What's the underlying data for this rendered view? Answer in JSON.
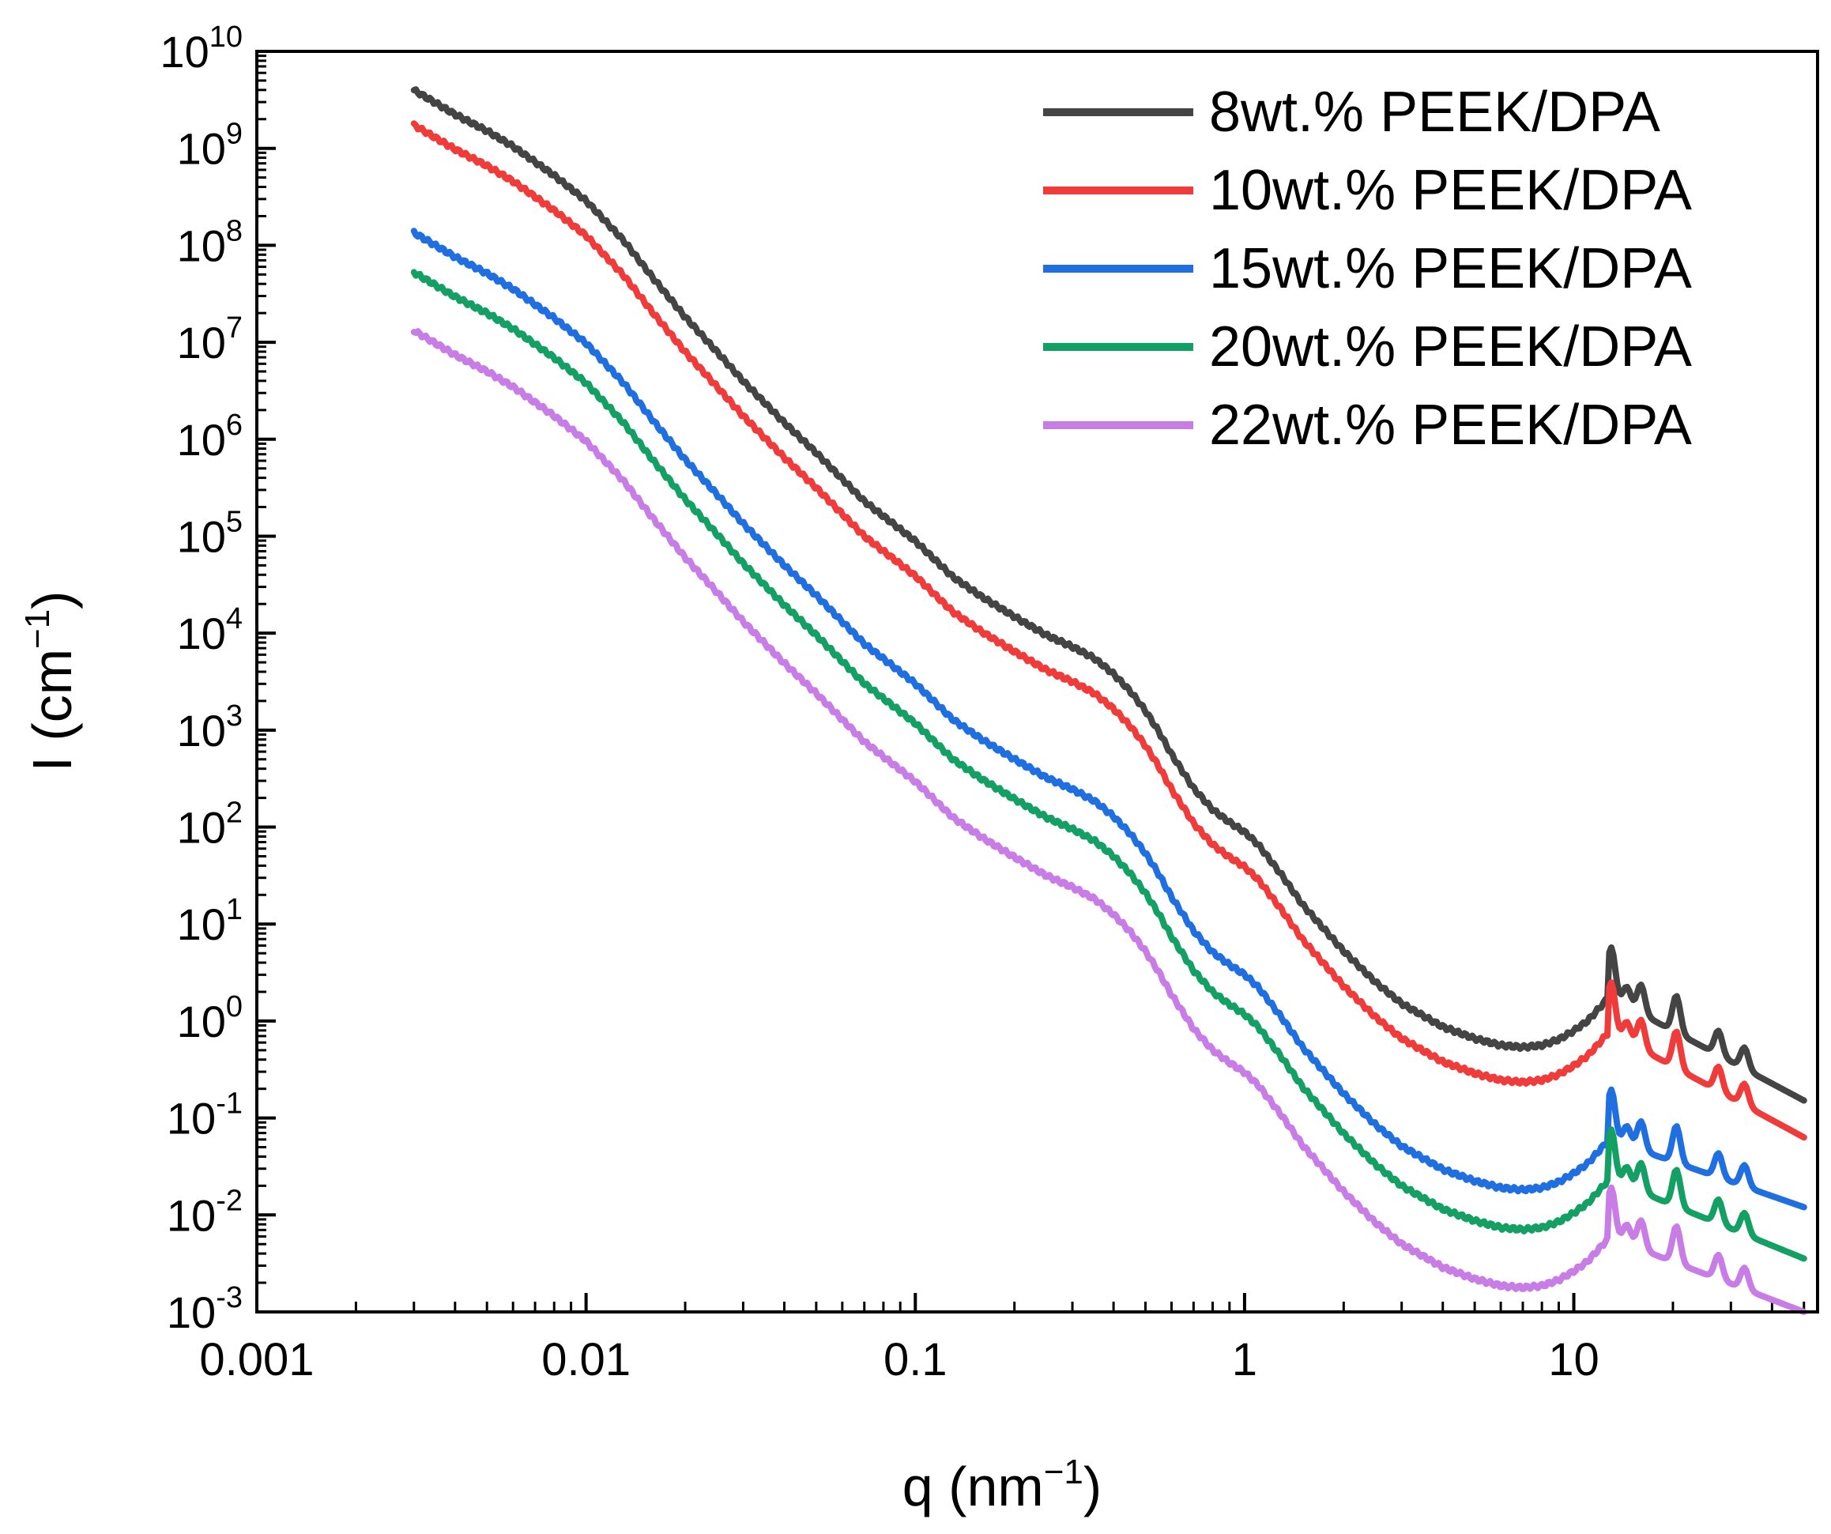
{
  "chart_data": {
    "type": "line",
    "title": "",
    "xlabel": "q (nm",
    "xlabel_sup": "−1",
    "xlabel_close": ")",
    "ylabel": "I (cm",
    "ylabel_sup": "−1",
    "ylabel_close": ")",
    "xscale": "log",
    "yscale": "log",
    "xlim": [
      0.001,
      55
    ],
    "ylim": [
      0.001,
      10000000000
    ],
    "x_ticks": [
      {
        "value": 0.001,
        "label": "0.001"
      },
      {
        "value": 0.01,
        "label": "0.01"
      },
      {
        "value": 0.1,
        "label": "0.1"
      },
      {
        "value": 1,
        "label": "1"
      },
      {
        "value": 10,
        "label": "10"
      }
    ],
    "y_ticks": [
      {
        "exp": -3,
        "base": "10",
        "sup": "-3"
      },
      {
        "exp": -2,
        "base": "10",
        "sup": "-2"
      },
      {
        "exp": -1,
        "base": "10",
        "sup": "-1"
      },
      {
        "exp": 0,
        "base": "10",
        "sup": "0"
      },
      {
        "exp": 1,
        "base": "10",
        "sup": "1"
      },
      {
        "exp": 2,
        "base": "10",
        "sup": "2"
      },
      {
        "exp": 3,
        "base": "10",
        "sup": "3"
      },
      {
        "exp": 4,
        "base": "10",
        "sup": "4"
      },
      {
        "exp": 5,
        "base": "10",
        "sup": "5"
      },
      {
        "exp": 6,
        "base": "10",
        "sup": "6"
      },
      {
        "exp": 7,
        "base": "10",
        "sup": "7"
      },
      {
        "exp": 8,
        "base": "10",
        "sup": "8"
      },
      {
        "exp": 9,
        "base": "10",
        "sup": "9"
      },
      {
        "exp": 10,
        "base": "10",
        "sup": "10"
      }
    ],
    "legend_position": "top-right",
    "shape": {
      "q": [
        0.003,
        0.004,
        0.005,
        0.006,
        0.008,
        0.01,
        0.013,
        0.016,
        0.02,
        0.025,
        0.03,
        0.04,
        0.05,
        0.07,
        0.1,
        0.13,
        0.16,
        0.2,
        0.25,
        0.3,
        0.35,
        0.4,
        0.45,
        0.5,
        0.55,
        0.6,
        0.65,
        0.7,
        0.8,
        0.9,
        1.0,
        1.1,
        1.3,
        1.5,
        2.0,
        2.5,
        3.0,
        4.0,
        5.0,
        6.0,
        7.0,
        8.0,
        9.0,
        10.0,
        11.0,
        12.0,
        12.8
      ],
      "rel_log": [
        0,
        -0.25,
        -0.42,
        -0.58,
        -0.88,
        -1.14,
        -1.55,
        -1.94,
        -2.34,
        -2.7,
        -3.0,
        -3.43,
        -3.74,
        -4.24,
        -4.65,
        -5.02,
        -5.23,
        -5.43,
        -5.62,
        -5.74,
        -5.86,
        -6.02,
        -6.2,
        -6.4,
        -6.62,
        -6.85,
        -7.03,
        -7.2,
        -7.42,
        -7.55,
        -7.65,
        -7.78,
        -8.1,
        -8.4,
        -8.88,
        -9.2,
        -9.42,
        -9.66,
        -9.78,
        -9.85,
        -9.87,
        -9.85,
        -9.79,
        -9.7,
        -9.6,
        -9.46,
        -9.35
      ]
    },
    "series": [
      {
        "name": "8wt.% PEEK/DPA",
        "color": "#444444",
        "log_I_at_q_min": 9.6,
        "log_I_at_q_max": -0.82
      },
      {
        "name": "10wt.% PEEK/DPA",
        "color": "#f03b3b",
        "log_I_at_q_min": 9.24,
        "log_I_at_q_max": -1.2
      },
      {
        "name": "15wt.% PEEK/DPA",
        "color": "#1f6fe0",
        "log_I_at_q_min": 8.13,
        "log_I_at_q_max": -1.92
      },
      {
        "name": "20wt.% PEEK/DPA",
        "color": "#14a064",
        "log_I_at_q_min": 7.72,
        "log_I_at_q_max": -2.45
      },
      {
        "name": "22wt.% PEEK/DPA",
        "color": "#c77ce6",
        "log_I_at_q_min": 7.12,
        "log_I_at_q_max": -3.0
      }
    ],
    "peaks": [
      {
        "q": 13.0,
        "log_height": 0.52
      },
      {
        "q": 14.5,
        "log_height": 0.2
      },
      {
        "q": 16.0,
        "log_height": 0.3
      },
      {
        "q": 20.5,
        "log_height": 0.38
      },
      {
        "q": 27.5,
        "log_height": 0.25
      },
      {
        "q": 33.0,
        "log_height": 0.22
      }
    ],
    "q_min": 0.003,
    "q_peak_start": 12.8,
    "q_max": 50
  }
}
